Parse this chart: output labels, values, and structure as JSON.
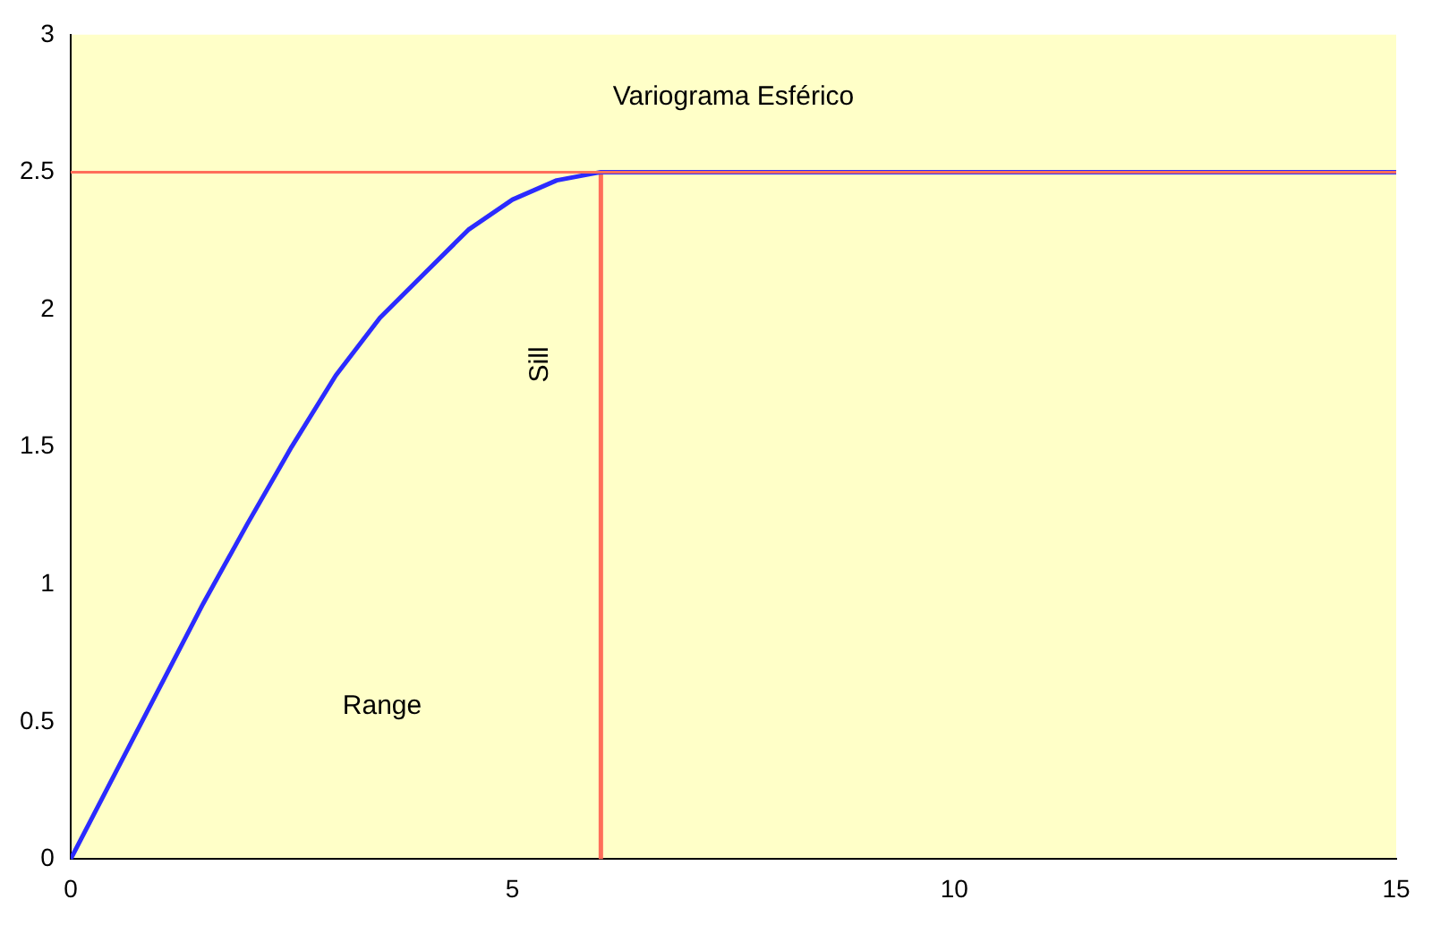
{
  "chart_data": {
    "type": "line",
    "title": "Variograma Esférico",
    "series": [
      {
        "color": "#2b2bff",
        "x": [
          0,
          0.5,
          1,
          1.5,
          2,
          2.5,
          3,
          3.5,
          4,
          4.5,
          5,
          5.5,
          6,
          8,
          10,
          12,
          15
        ],
        "values": [
          0,
          0.31,
          0.62,
          0.93,
          1.22,
          1.5,
          1.76,
          1.97,
          2.13,
          2.29,
          2.4,
          2.47,
          2.5,
          2.5,
          2.5,
          2.5,
          2.5
        ]
      },
      {
        "color": "#ff6e5a",
        "x": [
          6,
          6
        ],
        "values": [
          0,
          2.5
        ]
      }
    ],
    "ref_lines": [
      {
        "axis": "y",
        "value": 2.5,
        "color": "#ff6e5a"
      }
    ],
    "annotations": [
      "Sill",
      "Range"
    ],
    "xlim": [
      0,
      15
    ],
    "xticks": [
      0,
      5,
      10,
      15
    ],
    "ylim": [
      0,
      3
    ],
    "yticks": [
      0,
      0.5,
      1,
      1.5,
      2,
      2.5,
      3
    ],
    "grid": false,
    "legend": false,
    "marker": "none",
    "line_style": "solid"
  }
}
